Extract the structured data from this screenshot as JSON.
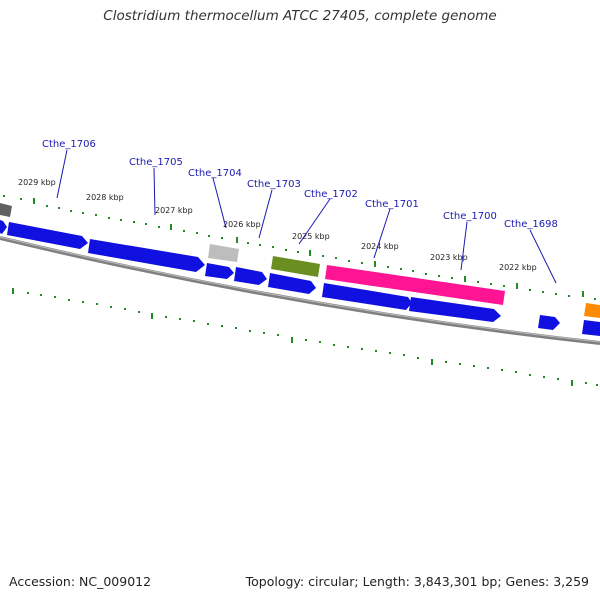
{
  "title": "Clostridium thermocellum ATCC 27405, complete genome",
  "footer": {
    "accession": "Accession: NC_009012",
    "summary": "Topology: circular; Length: 3,843,301 bp; Genes: 3,259"
  },
  "colors": {
    "cds": "#1010e0",
    "trna_grey": "#bdbdbd",
    "green": "#6b8e23",
    "pink": "#ff1493",
    "orange": "#ff8c00",
    "backbone": "#808080",
    "ticks": "#228b22",
    "gene_label": "#1a1ab0"
  },
  "genes": [
    {
      "label": "Cthe_1706"
    },
    {
      "label": "Cthe_1705"
    },
    {
      "label": "Cthe_1704"
    },
    {
      "label": "Cthe_1703"
    },
    {
      "label": "Cthe_1702"
    },
    {
      "label": "Cthe_1701"
    },
    {
      "label": "Cthe_1700"
    },
    {
      "label": "Cthe_1698"
    }
  ],
  "kbp_labels": [
    "2029 kbp",
    "2028 kbp",
    "2027 kbp",
    "2026 kbp",
    "2025 kbp",
    "2024 kbp",
    "2023 kbp",
    "2022 kbp"
  ]
}
